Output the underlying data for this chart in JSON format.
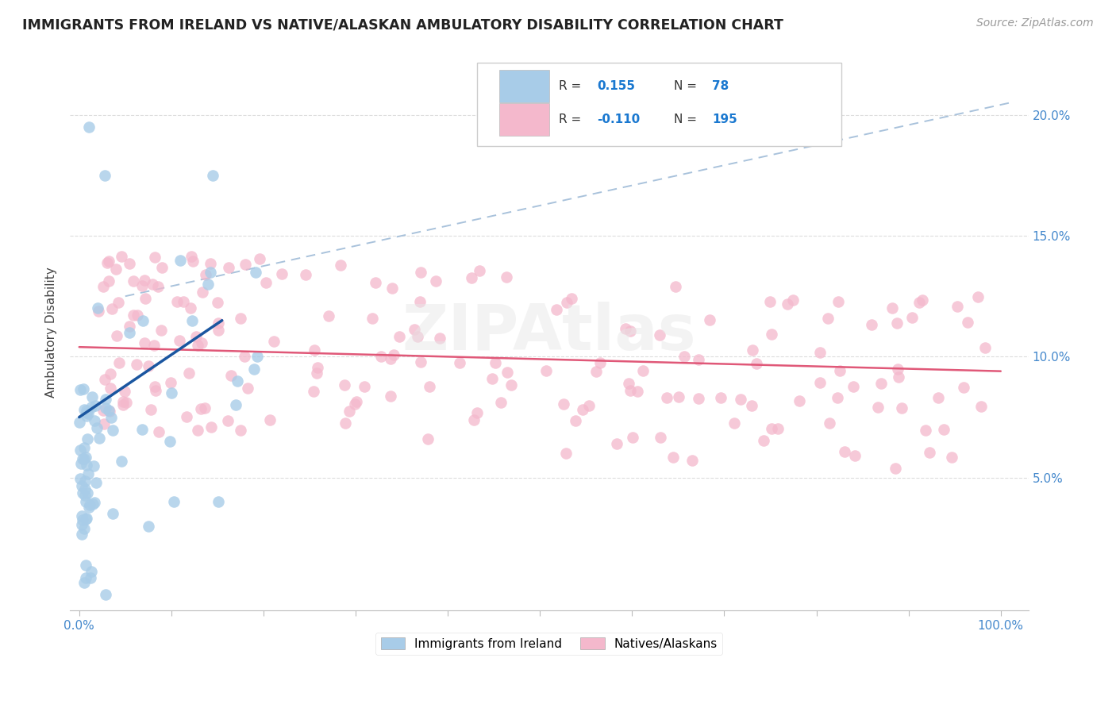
{
  "title": "IMMIGRANTS FROM IRELAND VS NATIVE/ALASKAN AMBULATORY DISABILITY CORRELATION CHART",
  "source": "Source: ZipAtlas.com",
  "ylabel": "Ambulatory Disability",
  "blue_R": 0.155,
  "blue_N": 78,
  "pink_R": -0.11,
  "pink_N": 195,
  "blue_color": "#a8cce8",
  "pink_color": "#f4b8cc",
  "blue_line_color": "#1a56a0",
  "pink_line_color": "#e05878",
  "dashed_line_color": "#a0bcd8",
  "watermark": "ZIPAtlas",
  "legend_blue": "Immigrants from Ireland",
  "legend_pink": "Natives/Alaskans",
  "blue_R_color": "#1a78d0",
  "blue_N_color": "#1a78d0",
  "tick_color": "#5599cc",
  "ytick_label_color": "#4488cc",
  "xtick_label_color": "#4488cc"
}
